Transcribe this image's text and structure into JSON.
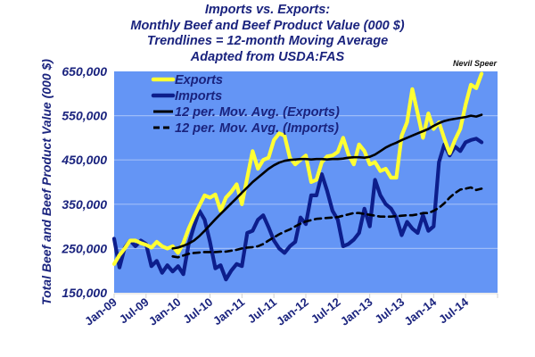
{
  "chart_data": {
    "type": "line",
    "title": [
      "Imports vs. Exports:",
      "Monthly Beef and Beef Product Value (000 $)",
      "Trendlines = 12-month Moving Average",
      "Adapted from USDA:FAS"
    ],
    "credit": "Nevil Speer",
    "xlabel": "",
    "ylabel": "Total Beef and Beef Product Value (000 $)",
    "ylim": [
      150000,
      650000
    ],
    "yticks": [
      150000,
      250000,
      350000,
      450000,
      550000,
      650000
    ],
    "ytick_labels": [
      "150,000",
      "250,000",
      "350,000",
      "450,000",
      "550,000",
      "650,000"
    ],
    "x_start": "Jan-09",
    "x_months_total": 72,
    "xtick_labels": [
      "Jan-09",
      "Jul-09",
      "Jan-10",
      "Jul-10",
      "Jan-11",
      "Jul-11",
      "Jan-12",
      "Jul-12",
      "Jan-13",
      "Jul-13",
      "Jan-14",
      "Jul-14"
    ],
    "grid": true,
    "legend_position": "top-left",
    "colors": {
      "plot_bg": "#6495f5",
      "grid": "#9ebcf8",
      "exports": "#ffff33",
      "imports": "#0d1e8c",
      "exports_ma": "#000000",
      "imports_ma": "#000000",
      "text": "#1a237e"
    },
    "series": [
      {
        "name": "Exports",
        "style": "solid-thick",
        "values": [
          215,
          235,
          250,
          268,
          268,
          262,
          258,
          252,
          265,
          255,
          250,
          255,
          240,
          262,
          295,
          322,
          347,
          370,
          365,
          372,
          335,
          365,
          378,
          395,
          350,
          410,
          470,
          430,
          450,
          455,
          495,
          510,
          505,
          455,
          440,
          450,
          460,
          400,
          405,
          445,
          458,
          460,
          468,
          500,
          462,
          440,
          485,
          470,
          440,
          445,
          425,
          430,
          410,
          410,
          505,
          535,
          610,
          555,
          500,
          555,
          520,
          535,
          498,
          465,
          495,
          520,
          575,
          620,
          612,
          645
        ]
      },
      {
        "name": "Imports",
        "style": "solid-thick",
        "values": [
          272,
          207,
          252,
          268,
          255,
          268,
          260,
          210,
          222,
          195,
          212,
          198,
          210,
          192,
          260,
          300,
          335,
          315,
          265,
          205,
          212,
          180,
          200,
          215,
          210,
          285,
          290,
          315,
          325,
          298,
          268,
          250,
          240,
          255,
          265,
          320,
          305,
          370,
          370,
          418,
          380,
          335,
          315,
          255,
          260,
          270,
          285,
          340,
          300,
          405,
          370,
          350,
          340,
          320,
          280,
          310,
          295,
          285,
          325,
          290,
          300,
          445,
          485,
          460,
          480,
          470,
          490,
          495,
          498,
          490
        ]
      },
      {
        "name": "12 per. Mov. Avg. (Exports)",
        "style": "solid-thin",
        "start_index": 11,
        "values": [
          250,
          252,
          256,
          261,
          268,
          278,
          290,
          303,
          316,
          328,
          340,
          352,
          364,
          376,
          388,
          400,
          410,
          420,
          430,
          438,
          444,
          448,
          450,
          451,
          452,
          452,
          451,
          452,
          452,
          451,
          452,
          452,
          453,
          455,
          456,
          456,
          455,
          457,
          462,
          470,
          478,
          484,
          489,
          495,
          500,
          505,
          510,
          515,
          520,
          527,
          533,
          538,
          541,
          543,
          545,
          547,
          550,
          548,
          552
        ]
      },
      {
        "name": "12 per. Mov. Avg. (Imports)",
        "style": "dashed",
        "start_index": 11,
        "values": [
          232,
          230,
          234,
          238,
          240,
          241,
          242,
          242,
          242,
          243,
          243,
          245,
          247,
          250,
          252,
          253,
          255,
          260,
          268,
          275,
          282,
          288,
          293,
          300,
          306,
          311,
          314,
          317,
          318,
          319,
          320,
          321,
          324,
          327,
          330,
          330,
          328,
          326,
          324,
          322,
          322,
          322,
          323,
          324,
          325,
          325,
          327,
          330,
          330,
          335,
          342,
          352,
          365,
          375,
          383,
          385,
          388,
          382,
          385
        ]
      }
    ]
  }
}
